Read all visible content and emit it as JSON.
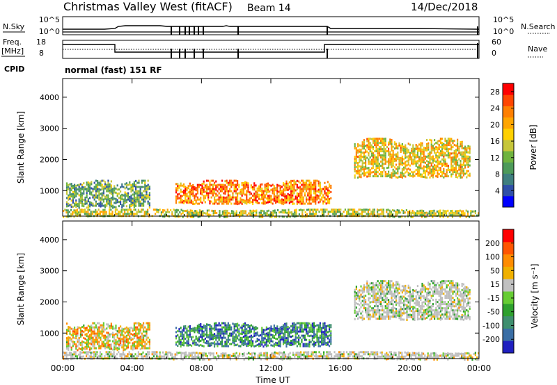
{
  "header": {
    "title": "Christmas Valley West (fitACF)",
    "beam": "Beam 14",
    "date": "14/Dec/2018"
  },
  "status_panels": {
    "nsky_label": "N.Sky",
    "nsearch_label": "N.Search",
    "nsky_ticks": [
      "10^5",
      "10^0"
    ],
    "nsearch_ticks": [
      "10^5",
      "10^0"
    ],
    "freq_label_1": "Freq.",
    "freq_label_2": "[MHz]",
    "freq_ticks": [
      "18",
      "8"
    ],
    "nave_label": "Nave",
    "nave_ticks": [
      "60",
      "0"
    ],
    "cpid_label": "CPID",
    "cpid_text": "normal (fast) 151 RF"
  },
  "colors": {
    "power_scale": [
      "#0000ff",
      "#2f4fa8",
      "#3f7f7f",
      "#4d9a5a",
      "#6fb33f",
      "#c6c63a",
      "#ffd000",
      "#ffa500",
      "#ff7f00",
      "#ff4500",
      "#ff0000"
    ],
    "velocity_scale": [
      "#2020c0",
      "#3a6ea5",
      "#3f8f6f",
      "#2ea02e",
      "#66cc33",
      "#c0c0c0",
      "#f0b000",
      "#ff8c00",
      "#ff5500",
      "#ff0000"
    ],
    "ground_scatter": "#bdbdbd"
  },
  "chart_data": [
    {
      "type": "heatmap",
      "title": "Power",
      "xlabel": "Time UT",
      "ylabel": "Slant Range [km]",
      "x_ticks": [
        "00:00",
        "04:00",
        "08:00",
        "12:00",
        "16:00",
        "20:00",
        "00:00"
      ],
      "y_ticks": [
        "1000",
        "2000",
        "3000",
        "4000"
      ],
      "ylim": [
        180,
        4600
      ],
      "xlim_hours": [
        0,
        24
      ],
      "colorbar_label": "Power [dB]",
      "colorbar_ticks": [
        "4",
        "8",
        "12",
        "16",
        "20",
        "24",
        "28"
      ],
      "colorbar_range": [
        0,
        30
      ],
      "regions": [
        {
          "t_start": 0.2,
          "t_end": 5.0,
          "r_start": 480,
          "r_end": 1350,
          "level": 0.35
        },
        {
          "t_start": 6.5,
          "t_end": 15.5,
          "r_start": 600,
          "r_end": 1350,
          "level": 0.75
        },
        {
          "t_start": 16.8,
          "t_end": 23.5,
          "r_start": 1450,
          "r_end": 2700,
          "level": 0.6
        },
        {
          "t_start": 0.0,
          "t_end": 24.0,
          "r_start": 180,
          "r_end": 420,
          "level": 0.5
        }
      ]
    },
    {
      "type": "heatmap",
      "title": "Velocity",
      "xlabel": "Time UT",
      "ylabel": "Slant Range [km]",
      "x_ticks": [
        "00:00",
        "04:00",
        "08:00",
        "12:00",
        "16:00",
        "20:00",
        "00:00"
      ],
      "y_ticks": [
        "1000",
        "2000",
        "3000",
        "4000"
      ],
      "ylim": [
        180,
        4600
      ],
      "xlim_hours": [
        0,
        24
      ],
      "colorbar_label": "Velocity [m s⁻¹]",
      "colorbar_ticks": [
        "200",
        "100",
        "50",
        "15",
        "-15",
        "-50",
        "-100",
        "-200"
      ],
      "colorbar_range": [
        -250,
        250
      ],
      "regions": [
        {
          "t_start": 0.2,
          "t_end": 5.0,
          "r_start": 480,
          "r_end": 1350,
          "level": 0.62
        },
        {
          "t_start": 6.5,
          "t_end": 15.5,
          "r_start": 600,
          "r_end": 1350,
          "level": 0.25
        },
        {
          "t_start": 16.8,
          "t_end": 23.5,
          "r_start": 1450,
          "r_end": 2700,
          "level": 0.5
        },
        {
          "t_start": 0.0,
          "t_end": 24.0,
          "r_start": 180,
          "r_end": 420,
          "level": 0.55
        }
      ]
    }
  ]
}
